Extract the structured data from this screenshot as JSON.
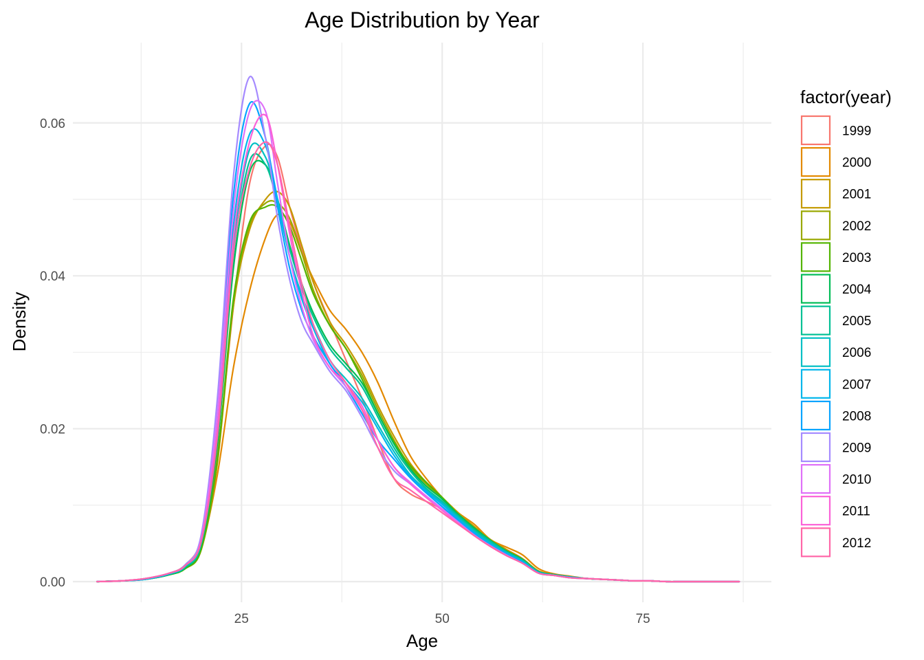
{
  "chart_data": {
    "type": "line",
    "title": "Age Distribution by Year",
    "xlabel": "Age",
    "ylabel": "Density",
    "xlim": [
      4,
      91
    ],
    "ylim": [
      -0.0027,
      0.0705
    ],
    "x_ticks": [
      25,
      50,
      75
    ],
    "x_tick_labels": [
      "25",
      "50",
      "75"
    ],
    "x_minor_ticks": [
      12.5,
      37.5,
      62.5,
      87.5
    ],
    "y_ticks": [
      0,
      0.02,
      0.04,
      0.06
    ],
    "y_tick_labels": [
      "0.00",
      "0.02",
      "0.04",
      "0.06"
    ],
    "y_minor_ticks": [
      0.01,
      0.03,
      0.05
    ],
    "grid": true,
    "legend": {
      "title": "factor(year)",
      "position": "right"
    },
    "series": [
      {
        "name": "1999",
        "color": "#F8766D",
        "x": [
          7,
          10,
          13,
          16,
          18,
          20,
          22,
          24,
          26,
          28,
          29.5,
          31,
          32.5,
          34,
          36,
          38,
          40,
          42,
          44,
          46,
          48,
          50,
          52,
          54,
          56,
          58,
          60,
          62,
          64,
          66,
          68,
          70,
          72,
          74,
          76,
          78,
          80,
          84,
          87
        ],
        "y": [
          0,
          0.0001,
          0.0004,
          0.0011,
          0.0022,
          0.0055,
          0.0165,
          0.036,
          0.052,
          0.057,
          0.0555,
          0.049,
          0.0435,
          0.039,
          0.034,
          0.029,
          0.024,
          0.0185,
          0.0135,
          0.0115,
          0.0105,
          0.0095,
          0.0085,
          0.007,
          0.0055,
          0.0042,
          0.003,
          0.0012,
          0.0008,
          0.0006,
          0.0004,
          0.0003,
          0.0002,
          0.0001,
          0.0001,
          0,
          0,
          0,
          0
        ]
      },
      {
        "name": "2000",
        "color": "#E38900",
        "x": [
          7,
          10,
          13,
          16,
          18,
          20,
          22,
          24,
          26,
          28,
          29.5,
          31,
          32.5,
          34,
          36,
          38,
          40,
          42,
          44,
          46,
          48,
          50,
          52,
          54,
          56,
          58,
          60,
          62,
          64,
          66,
          68,
          70,
          72,
          74,
          76,
          78,
          80,
          84,
          87
        ],
        "y": [
          0,
          0.0001,
          0.0003,
          0.0009,
          0.0018,
          0.0045,
          0.014,
          0.028,
          0.038,
          0.045,
          0.048,
          0.047,
          0.043,
          0.0395,
          0.0355,
          0.033,
          0.03,
          0.026,
          0.021,
          0.0165,
          0.0135,
          0.011,
          0.009,
          0.0075,
          0.0055,
          0.0045,
          0.0035,
          0.0017,
          0.001,
          0.0007,
          0.0004,
          0.0003,
          0.0002,
          0.0001,
          0.0001,
          0,
          0,
          0,
          0
        ]
      },
      {
        "name": "2001",
        "color": "#C49A00",
        "x": [
          7,
          10,
          13,
          16,
          18,
          20,
          22,
          24,
          26,
          28,
          29.5,
          31,
          32.5,
          34,
          36,
          38,
          40,
          42,
          44,
          46,
          48,
          50,
          52,
          54,
          56,
          58,
          60,
          62,
          64,
          66,
          68,
          70,
          72,
          74,
          76,
          78,
          80,
          84,
          87
        ],
        "y": [
          0,
          0.0001,
          0.0003,
          0.0009,
          0.0017,
          0.0042,
          0.0155,
          0.036,
          0.046,
          0.05,
          0.051,
          0.049,
          0.044,
          0.039,
          0.034,
          0.031,
          0.0275,
          0.023,
          0.019,
          0.0155,
          0.013,
          0.011,
          0.009,
          0.0072,
          0.0055,
          0.0042,
          0.003,
          0.0014,
          0.0009,
          0.0006,
          0.0004,
          0.0003,
          0.0002,
          0.0001,
          0.0001,
          0,
          0,
          0,
          0
        ]
      },
      {
        "name": "2002",
        "color": "#99A800",
        "x": [
          7,
          10,
          13,
          16,
          18,
          20,
          22,
          24,
          26,
          28,
          29.5,
          31,
          32.5,
          34,
          36,
          38,
          40,
          42,
          44,
          46,
          48,
          50,
          52,
          54,
          56,
          58,
          60,
          62,
          64,
          66,
          68,
          70,
          72,
          74,
          76,
          78,
          80,
          84,
          87
        ],
        "y": [
          0,
          0.0001,
          0.0003,
          0.0009,
          0.0017,
          0.0043,
          0.016,
          0.0365,
          0.0465,
          0.0495,
          0.0495,
          0.0475,
          0.043,
          0.038,
          0.0335,
          0.0305,
          0.027,
          0.0225,
          0.0185,
          0.015,
          0.0128,
          0.0108,
          0.0088,
          0.007,
          0.0054,
          0.004,
          0.0029,
          0.0013,
          0.0009,
          0.0006,
          0.0004,
          0.0003,
          0.0002,
          0.0001,
          0.0001,
          0,
          0,
          0,
          0
        ]
      },
      {
        "name": "2003",
        "color": "#53B400",
        "x": [
          7,
          10,
          13,
          16,
          18,
          20,
          22,
          24,
          26,
          28,
          29.5,
          31,
          32.5,
          34,
          36,
          38,
          40,
          42,
          44,
          46,
          48,
          50,
          52,
          54,
          56,
          58,
          60,
          62,
          64,
          66,
          68,
          70,
          72,
          74,
          76,
          78,
          80,
          84,
          87
        ],
        "y": [
          0,
          0.0001,
          0.0003,
          0.0009,
          0.0017,
          0.0043,
          0.016,
          0.037,
          0.047,
          0.049,
          0.049,
          0.0465,
          0.042,
          0.0375,
          0.0335,
          0.0305,
          0.0265,
          0.022,
          0.0182,
          0.0152,
          0.013,
          0.011,
          0.0088,
          0.007,
          0.0054,
          0.004,
          0.0029,
          0.0013,
          0.0009,
          0.0006,
          0.0004,
          0.0003,
          0.0002,
          0.0001,
          0.0001,
          0,
          0,
          0,
          0
        ]
      },
      {
        "name": "2004",
        "color": "#00BC56",
        "x": [
          7,
          10,
          13,
          16,
          18,
          20,
          22,
          24,
          26,
          28,
          29.5,
          31,
          32.5,
          34,
          36,
          38,
          40,
          42,
          44,
          46,
          48,
          50,
          52,
          54,
          56,
          58,
          60,
          62,
          64,
          66,
          68,
          70,
          72,
          74,
          76,
          78,
          80,
          84,
          87
        ],
        "y": [
          0,
          0.0001,
          0.0003,
          0.0009,
          0.0018,
          0.0048,
          0.018,
          0.041,
          0.0535,
          0.0545,
          0.05,
          0.044,
          0.039,
          0.035,
          0.031,
          0.0285,
          0.026,
          0.022,
          0.018,
          0.0148,
          0.0125,
          0.0108,
          0.0088,
          0.007,
          0.0054,
          0.004,
          0.0029,
          0.0013,
          0.0009,
          0.0006,
          0.0004,
          0.0003,
          0.0002,
          0.0001,
          0.0001,
          0,
          0,
          0,
          0
        ]
      },
      {
        "name": "2005",
        "color": "#00C094",
        "x": [
          7,
          10,
          13,
          16,
          18,
          20,
          22,
          24,
          26,
          28,
          29.5,
          31,
          32.5,
          34,
          36,
          38,
          40,
          42,
          44,
          46,
          48,
          50,
          52,
          54,
          56,
          58,
          60,
          62,
          64,
          66,
          68,
          70,
          72,
          74,
          76,
          78,
          80,
          84,
          87
        ],
        "y": [
          0,
          0.0001,
          0.0003,
          0.001,
          0.0019,
          0.005,
          0.019,
          0.0425,
          0.055,
          0.0545,
          0.0495,
          0.0435,
          0.0385,
          0.0345,
          0.0305,
          0.028,
          0.0255,
          0.0215,
          0.0175,
          0.0145,
          0.0122,
          0.0105,
          0.0086,
          0.0068,
          0.0053,
          0.0039,
          0.0028,
          0.0013,
          0.0009,
          0.0006,
          0.0004,
          0.0003,
          0.0002,
          0.0001,
          0.0001,
          0,
          0,
          0,
          0
        ]
      },
      {
        "name": "2006",
        "color": "#00BFC4",
        "x": [
          7,
          10,
          13,
          16,
          18,
          20,
          22,
          24,
          26,
          28,
          29.5,
          31,
          32.5,
          34,
          36,
          38,
          40,
          42,
          44,
          46,
          48,
          50,
          52,
          54,
          56,
          58,
          60,
          62,
          64,
          66,
          68,
          70,
          72,
          74,
          76,
          78,
          80,
          84,
          87
        ],
        "y": [
          0,
          0.0001,
          0.0003,
          0.001,
          0.002,
          0.0053,
          0.02,
          0.044,
          0.0565,
          0.0555,
          0.0495,
          0.0425,
          0.0375,
          0.0335,
          0.029,
          0.0265,
          0.024,
          0.0205,
          0.017,
          0.014,
          0.012,
          0.0103,
          0.0084,
          0.0066,
          0.0051,
          0.0038,
          0.0027,
          0.0012,
          0.0008,
          0.0006,
          0.0004,
          0.0003,
          0.0002,
          0.0001,
          0.0001,
          0,
          0,
          0,
          0
        ]
      },
      {
        "name": "2007",
        "color": "#00B6EB",
        "x": [
          7,
          10,
          13,
          16,
          18,
          20,
          22,
          24,
          26,
          28,
          29.5,
          31,
          32.5,
          34,
          36,
          38,
          40,
          42,
          44,
          46,
          48,
          50,
          52,
          54,
          56,
          58,
          60,
          62,
          64,
          66,
          68,
          70,
          72,
          74,
          76,
          78,
          80,
          84,
          87
        ],
        "y": [
          0,
          0.0001,
          0.0003,
          0.001,
          0.0021,
          0.0056,
          0.021,
          0.0465,
          0.0585,
          0.057,
          0.05,
          0.0425,
          0.037,
          0.033,
          0.0285,
          0.026,
          0.0235,
          0.02,
          0.0165,
          0.0138,
          0.0118,
          0.0101,
          0.0082,
          0.0064,
          0.0049,
          0.0037,
          0.0026,
          0.0012,
          0.0008,
          0.0006,
          0.0004,
          0.0003,
          0.0002,
          0.0001,
          0.0001,
          0,
          0,
          0,
          0
        ]
      },
      {
        "name": "2008",
        "color": "#06A4FF",
        "x": [
          7,
          10,
          13,
          16,
          18,
          20,
          22,
          24,
          26,
          28,
          29.5,
          31,
          32.5,
          34,
          36,
          38,
          40,
          42,
          44,
          46,
          48,
          50,
          52,
          54,
          56,
          58,
          60,
          62,
          64,
          66,
          68,
          70,
          72,
          74,
          76,
          78,
          80,
          84,
          87
        ],
        "y": [
          0,
          0.0001,
          0.0004,
          0.0011,
          0.0022,
          0.006,
          0.023,
          0.0505,
          0.0625,
          0.058,
          0.049,
          0.041,
          0.0355,
          0.032,
          0.0285,
          0.0255,
          0.022,
          0.0185,
          0.016,
          0.0136,
          0.0116,
          0.0098,
          0.008,
          0.0063,
          0.0048,
          0.0036,
          0.0025,
          0.0011,
          0.0008,
          0.0005,
          0.0004,
          0.0003,
          0.0002,
          0.0001,
          0.0001,
          0,
          0,
          0,
          0
        ]
      },
      {
        "name": "2009",
        "color": "#A58AFF",
        "x": [
          7,
          10,
          13,
          16,
          18,
          20,
          22,
          24,
          26,
          28,
          29.5,
          31,
          32.5,
          34,
          36,
          38,
          40,
          42,
          44,
          46,
          48,
          50,
          52,
          54,
          56,
          58,
          60,
          62,
          64,
          66,
          68,
          70,
          72,
          74,
          76,
          78,
          80,
          84,
          87
        ],
        "y": [
          0,
          0.0001,
          0.0004,
          0.0011,
          0.0022,
          0.0062,
          0.024,
          0.053,
          0.066,
          0.058,
          0.0475,
          0.0395,
          0.034,
          0.031,
          0.0275,
          0.025,
          0.0215,
          0.0175,
          0.0145,
          0.0128,
          0.0112,
          0.0095,
          0.0078,
          0.0061,
          0.0047,
          0.0035,
          0.0024,
          0.0011,
          0.0008,
          0.0005,
          0.0004,
          0.0003,
          0.0002,
          0.0001,
          0.0001,
          0,
          0,
          0,
          0
        ]
      },
      {
        "name": "2010",
        "color": "#DF70F8",
        "x": [
          7,
          10,
          13,
          16,
          18,
          20,
          22,
          24,
          26,
          28,
          29.5,
          31,
          32.5,
          34,
          36,
          38,
          40,
          42,
          44,
          46,
          48,
          50,
          52,
          54,
          56,
          58,
          60,
          62,
          64,
          66,
          68,
          70,
          72,
          74,
          76,
          78,
          80,
          84,
          87
        ],
        "y": [
          0,
          0.0001,
          0.0004,
          0.0011,
          0.0021,
          0.0057,
          0.022,
          0.0485,
          0.0615,
          0.0615,
          0.052,
          0.0425,
          0.036,
          0.0315,
          0.028,
          0.0255,
          0.0225,
          0.0185,
          0.015,
          0.013,
          0.0112,
          0.0095,
          0.0077,
          0.006,
          0.0046,
          0.0034,
          0.0024,
          0.0011,
          0.0008,
          0.0005,
          0.0004,
          0.0003,
          0.0002,
          0.0001,
          0.0001,
          0,
          0,
          0,
          0
        ]
      },
      {
        "name": "2011",
        "color": "#FB61D7",
        "x": [
          7,
          10,
          13,
          16,
          18,
          20,
          22,
          24,
          26,
          28,
          29.5,
          31,
          32.5,
          34,
          36,
          38,
          40,
          42,
          44,
          46,
          48,
          50,
          52,
          54,
          56,
          58,
          60,
          62,
          64,
          66,
          68,
          70,
          72,
          74,
          76,
          78,
          80,
          84,
          87
        ],
        "y": [
          0,
          0.0001,
          0.0004,
          0.0011,
          0.0021,
          0.0054,
          0.02,
          0.045,
          0.0575,
          0.061,
          0.0545,
          0.0455,
          0.038,
          0.032,
          0.028,
          0.026,
          0.023,
          0.0185,
          0.015,
          0.0128,
          0.011,
          0.0093,
          0.0076,
          0.006,
          0.0046,
          0.0034,
          0.0024,
          0.0011,
          0.0008,
          0.0005,
          0.0004,
          0.0003,
          0.0002,
          0.0001,
          0.0001,
          0,
          0,
          0,
          0
        ]
      },
      {
        "name": "2012",
        "color": "#FF66A8",
        "x": [
          7,
          10,
          13,
          16,
          18,
          20,
          22,
          24,
          26,
          28,
          29.5,
          31,
          32.5,
          34,
          36,
          38,
          40,
          42,
          44,
          46,
          48,
          50,
          52,
          54,
          56,
          58,
          60,
          62,
          64,
          66,
          68,
          70,
          72,
          74,
          76,
          78,
          80,
          84,
          87
        ],
        "y": [
          0,
          0.0001,
          0.0004,
          0.0011,
          0.0021,
          0.0053,
          0.019,
          0.043,
          0.054,
          0.0575,
          0.0545,
          0.0465,
          0.039,
          0.0335,
          0.029,
          0.026,
          0.0225,
          0.0175,
          0.0135,
          0.012,
          0.0105,
          0.009,
          0.0075,
          0.006,
          0.0046,
          0.0034,
          0.0024,
          0.0011,
          0.0008,
          0.0005,
          0.0004,
          0.0003,
          0.0002,
          0.0001,
          0.0001,
          0,
          0,
          0,
          0
        ]
      }
    ]
  }
}
